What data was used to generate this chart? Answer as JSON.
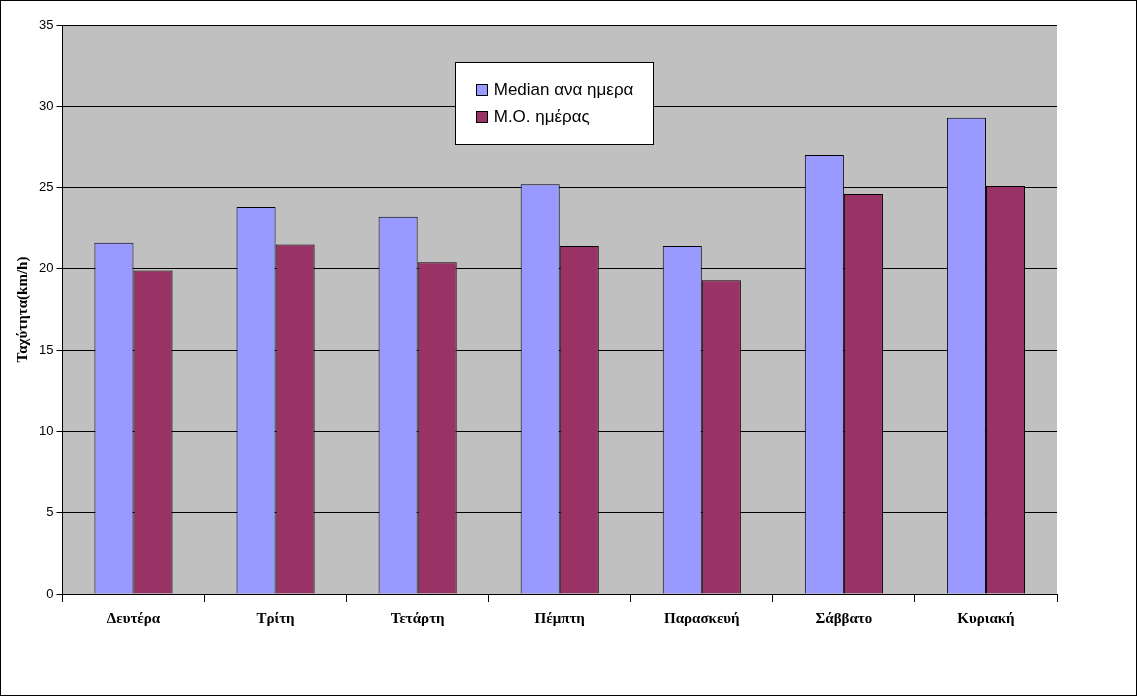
{
  "chart_data": {
    "type": "bar",
    "ylabel": "Ταχύτητα(km/h)",
    "categories": [
      "Δευτέρα",
      "Τρίτη",
      "Τετάρτη",
      "Πέμπτη",
      "Παρασκευή",
      "Σάββατο",
      "Κυριακή"
    ],
    "series": [
      {
        "name": "Median ανα ημερα",
        "color": "#9999ff",
        "values": [
          21.6,
          23.8,
          23.2,
          25.2,
          21.4,
          27.0,
          29.3
        ]
      },
      {
        "name": "Μ.Ο. ημέρας",
        "color": "#993366",
        "values": [
          19.9,
          21.5,
          20.4,
          21.4,
          19.3,
          24.6,
          25.1
        ]
      }
    ],
    "ylim": [
      0,
      35
    ],
    "yticks": [
      0,
      5,
      10,
      15,
      20,
      25,
      30,
      35
    ],
    "grid": "y",
    "legend": "top"
  }
}
